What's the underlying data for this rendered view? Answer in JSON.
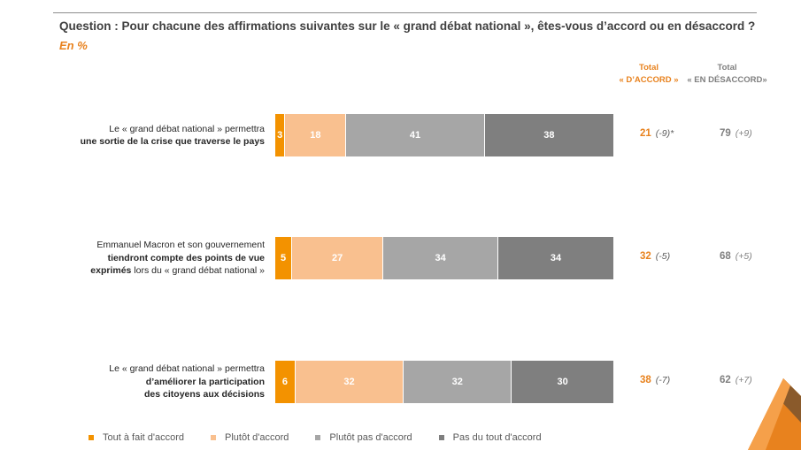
{
  "question": "Question : Pour chacune des affirmations suivantes sur le « grand débat national », êtes-vous d’accord ou en désaccord ?",
  "unit": "En %",
  "col_headers": {
    "accord_l1": "Total",
    "accord_l2": "« D’ACCORD »",
    "desaccord_l1": "Total",
    "desaccord_l2": "« EN DÉSACCORD»"
  },
  "rows": [
    {
      "label_lines": [
        [
          {
            "t": "Le « grand débat national » permettra",
            "b": false
          }
        ],
        [
          {
            "t": "une sortie de la crise que traverse le pays",
            "b": true
          }
        ]
      ],
      "values": [
        3,
        18,
        41,
        38
      ],
      "total_accord": "21",
      "accord_change": "(-9)*",
      "total_desaccord": "79",
      "desaccord_change": "(+9)"
    },
    {
      "label_lines": [
        [
          {
            "t": "Emmanuel Macron et son gouvernement",
            "b": false
          }
        ],
        [
          {
            "t": "tiendront compte des points de vue",
            "b": true
          }
        ],
        [
          {
            "t": "exprimés",
            "b": true
          },
          {
            "t": " lors du « grand débat national »",
            "b": false
          }
        ]
      ],
      "values": [
        5,
        27,
        34,
        34
      ],
      "total_accord": "32",
      "accord_change": "(-5)",
      "total_desaccord": "68",
      "desaccord_change": "(+5)"
    },
    {
      "label_lines": [
        [
          {
            "t": "Le « grand débat national » permettra",
            "b": false
          }
        ],
        [
          {
            "t": "d’améliorer la participation",
            "b": true
          }
        ],
        [
          {
            "t": "des citoyens aux décisions",
            "b": true
          }
        ]
      ],
      "values": [
        6,
        32,
        32,
        30
      ],
      "total_accord": "38",
      "accord_change": "(-7)",
      "total_desaccord": "62",
      "desaccord_change": "(+7)"
    }
  ],
  "legend": [
    {
      "label": "Tout à fait d'accord",
      "color": "#f39200"
    },
    {
      "label": "Plutôt d'accord",
      "color": "#f9c08f"
    },
    {
      "label": "Plutôt pas d'accord",
      "color": "#a6a6a6"
    },
    {
      "label": "Pas du tout d'accord",
      "color": "#7f7f7f"
    }
  ],
  "chart_data": {
    "type": "bar",
    "orientation": "horizontal",
    "stacked": true,
    "title": "Question : Pour chacune des affirmations suivantes sur le « grand débat national », êtes-vous d’accord ou en désaccord ?",
    "unit": "En %",
    "categories": [
      "Le « grand débat national » permettra une sortie de la crise que traverse le pays",
      "Emmanuel Macron et son gouvernement tiendront compte des points de vue exprimés lors du « grand débat national »",
      "Le « grand débat national » permettra d’améliorer la participation des citoyens aux décisions"
    ],
    "series": [
      {
        "name": "Tout à fait d'accord",
        "values": [
          3,
          5,
          6
        ]
      },
      {
        "name": "Plutôt d'accord",
        "values": [
          18,
          27,
          32
        ]
      },
      {
        "name": "Plutôt pas d'accord",
        "values": [
          41,
          34,
          32
        ]
      },
      {
        "name": "Pas du tout d'accord",
        "values": [
          38,
          34,
          30
        ]
      }
    ],
    "totals": {
      "accord": [
        21,
        32,
        38
      ],
      "accord_change": [
        "(-9)*",
        "(-5)",
        "(-7)"
      ],
      "desaccord": [
        79,
        68,
        62
      ],
      "desaccord_change": [
        "(+9)",
        "(+5)",
        "(+7)"
      ]
    },
    "xlim": [
      0,
      100
    ],
    "legend_position": "bottom"
  }
}
